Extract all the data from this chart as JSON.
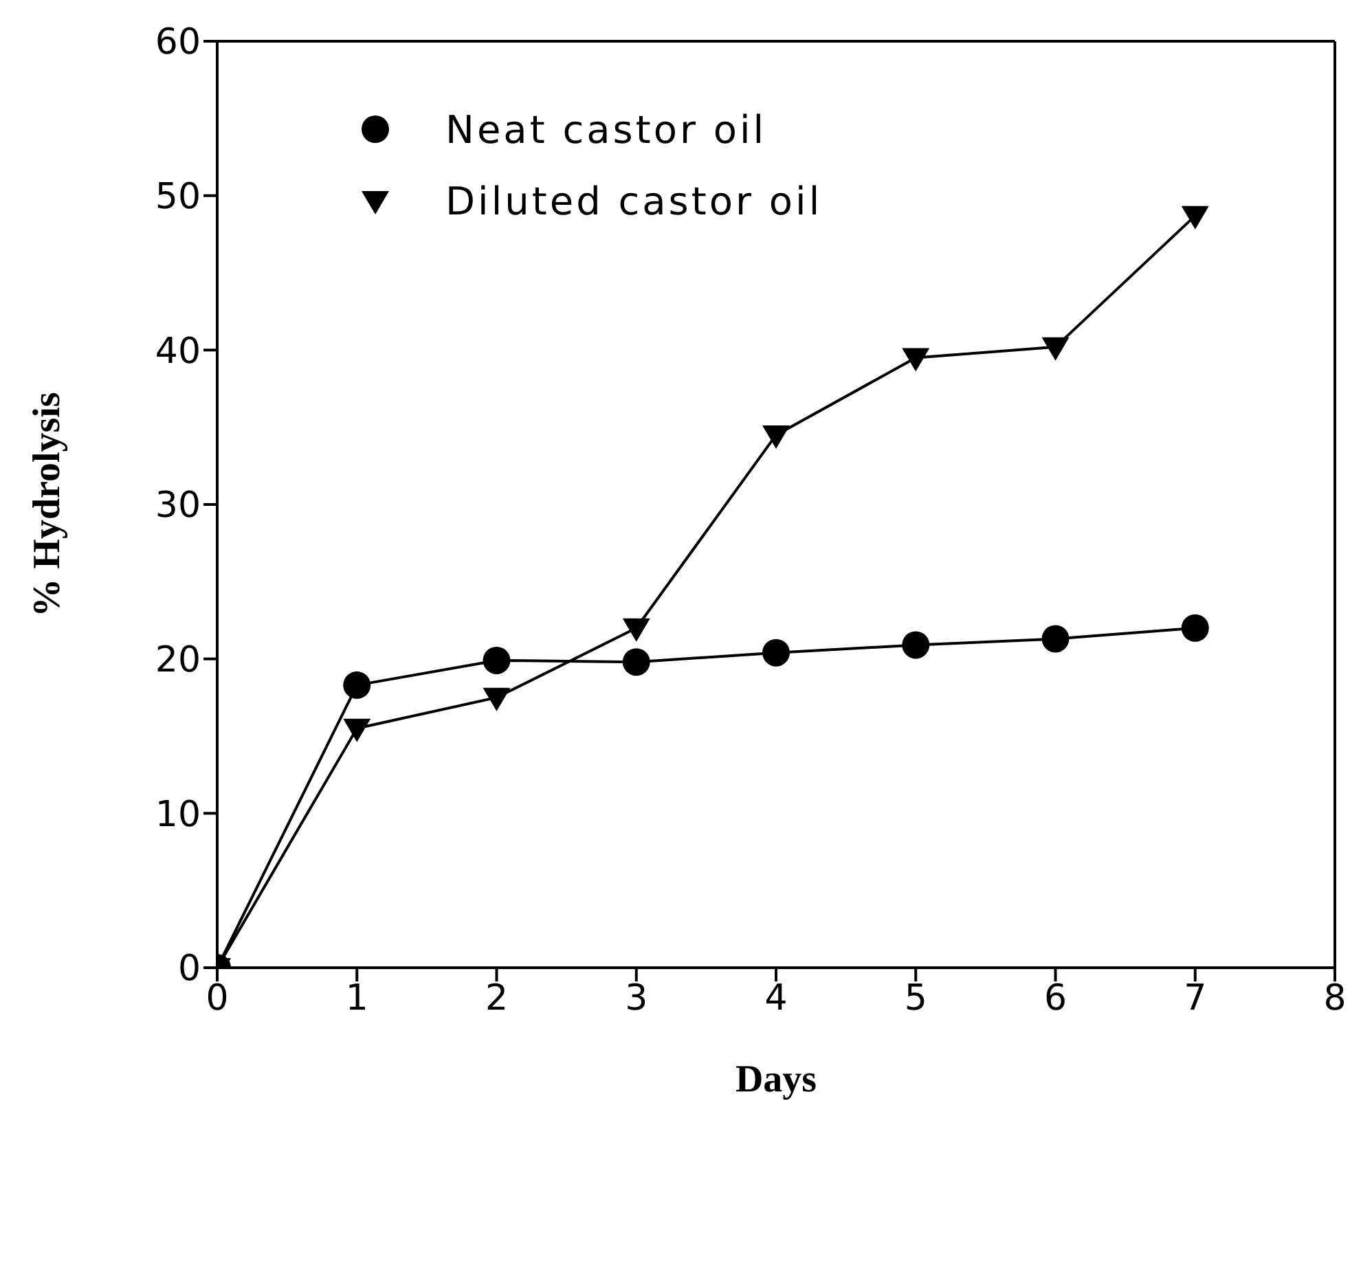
{
  "chart_data": {
    "type": "line",
    "xlabel": "Days",
    "ylabel": "% Hydrolysis",
    "x": [
      0,
      1,
      2,
      3,
      4,
      5,
      6,
      7
    ],
    "series": [
      {
        "name": "Neat castor oil",
        "color": "#000000",
        "marker": "circle",
        "values": [
          0,
          18.3,
          19.9,
          19.8,
          20.4,
          20.9,
          21.3,
          22.0
        ]
      },
      {
        "name": "Diluted castor oil",
        "color": "#000000",
        "marker": "triangle",
        "values": [
          0,
          15.5,
          17.5,
          22.0,
          34.5,
          39.5,
          40.2,
          48.7
        ]
      }
    ],
    "xlim": [
      0,
      8
    ],
    "xticks": [
      0,
      1,
      2,
      3,
      4,
      5,
      6,
      7,
      8
    ],
    "ylim": [
      0,
      60
    ],
    "yticks": [
      0,
      10,
      20,
      30,
      40,
      50,
      60
    ],
    "grid": false,
    "legend": "top left",
    "line_style": "solid"
  }
}
